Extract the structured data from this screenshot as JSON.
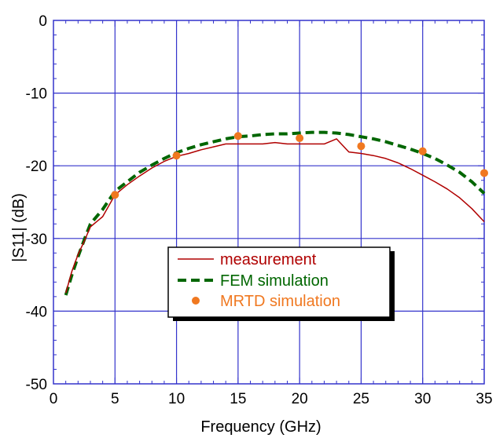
{
  "chart_data": {
    "type": "line",
    "title": "",
    "xlabel": "Frequency (GHz)",
    "ylabel": "|S11| (dB)",
    "xlim": [
      0,
      35
    ],
    "ylim": [
      -50,
      0
    ],
    "xticks": [
      0,
      5,
      10,
      15,
      20,
      25,
      30,
      35
    ],
    "yticks": [
      0,
      -10,
      -20,
      -30,
      -40,
      -50
    ],
    "xtick_labels": [
      "0",
      "5",
      "10",
      "15",
      "20",
      "25",
      "30",
      "35"
    ],
    "ytick_labels": [
      "0",
      "-10",
      "-20",
      "-30",
      "-40",
      "-50"
    ],
    "grid": true,
    "grid_color": "#3333cc",
    "legend_position": "center-bottom",
    "series": [
      {
        "name": "measurement",
        "style": "solid-line",
        "color": "#b00000",
        "x": [
          1,
          1.5,
          2,
          2.5,
          3,
          4,
          5,
          6,
          7,
          8,
          9,
          10,
          11,
          12,
          13,
          14,
          15,
          16,
          17,
          18,
          19,
          20,
          21,
          22,
          23,
          24,
          25,
          26,
          27,
          28,
          29,
          30,
          31,
          32,
          33,
          34,
          35
        ],
        "y": [
          -37.5,
          -34.5,
          -32.2,
          -30.4,
          -28.4,
          -27.0,
          -24.0,
          -22.6,
          -21.4,
          -20.3,
          -19.4,
          -18.7,
          -18.3,
          -17.8,
          -17.4,
          -17.0,
          -17.0,
          -17.0,
          -17.0,
          -16.8,
          -17.0,
          -17.0,
          -17.0,
          -17.0,
          -16.3,
          -18.1,
          -18.3,
          -18.6,
          -19.0,
          -19.6,
          -20.4,
          -21.3,
          -22.2,
          -23.2,
          -24.4,
          -25.9,
          -27.7
        ]
      },
      {
        "name": "FEM simulation",
        "style": "dashed-line",
        "color": "#006600",
        "x": [
          1,
          1.5,
          2,
          2.5,
          3,
          4,
          5,
          6,
          7,
          8,
          9,
          10,
          11,
          12,
          13,
          14,
          15,
          16,
          17,
          18,
          19,
          20,
          21,
          22,
          23,
          24,
          25,
          26,
          27,
          28,
          29,
          30,
          31,
          32,
          33,
          34,
          35
        ],
        "y": [
          -37.8,
          -35.0,
          -32.5,
          -30.2,
          -28.0,
          -26.0,
          -23.5,
          -22.2,
          -20.9,
          -19.9,
          -19.0,
          -18.2,
          -17.6,
          -17.1,
          -16.7,
          -16.3,
          -16.0,
          -15.9,
          -15.7,
          -15.6,
          -15.6,
          -15.5,
          -15.4,
          -15.4,
          -15.5,
          -15.7,
          -16.0,
          -16.3,
          -16.7,
          -17.2,
          -17.7,
          -18.3,
          -19.0,
          -19.9,
          -20.9,
          -22.2,
          -23.8
        ]
      },
      {
        "name": "MRTD simulation",
        "style": "markers",
        "color": "#f07820",
        "x": [
          5,
          10,
          15,
          20,
          25,
          30,
          35
        ],
        "y": [
          -24.0,
          -18.6,
          -15.9,
          -16.2,
          -17.3,
          -18.0,
          -21.0
        ]
      }
    ]
  }
}
